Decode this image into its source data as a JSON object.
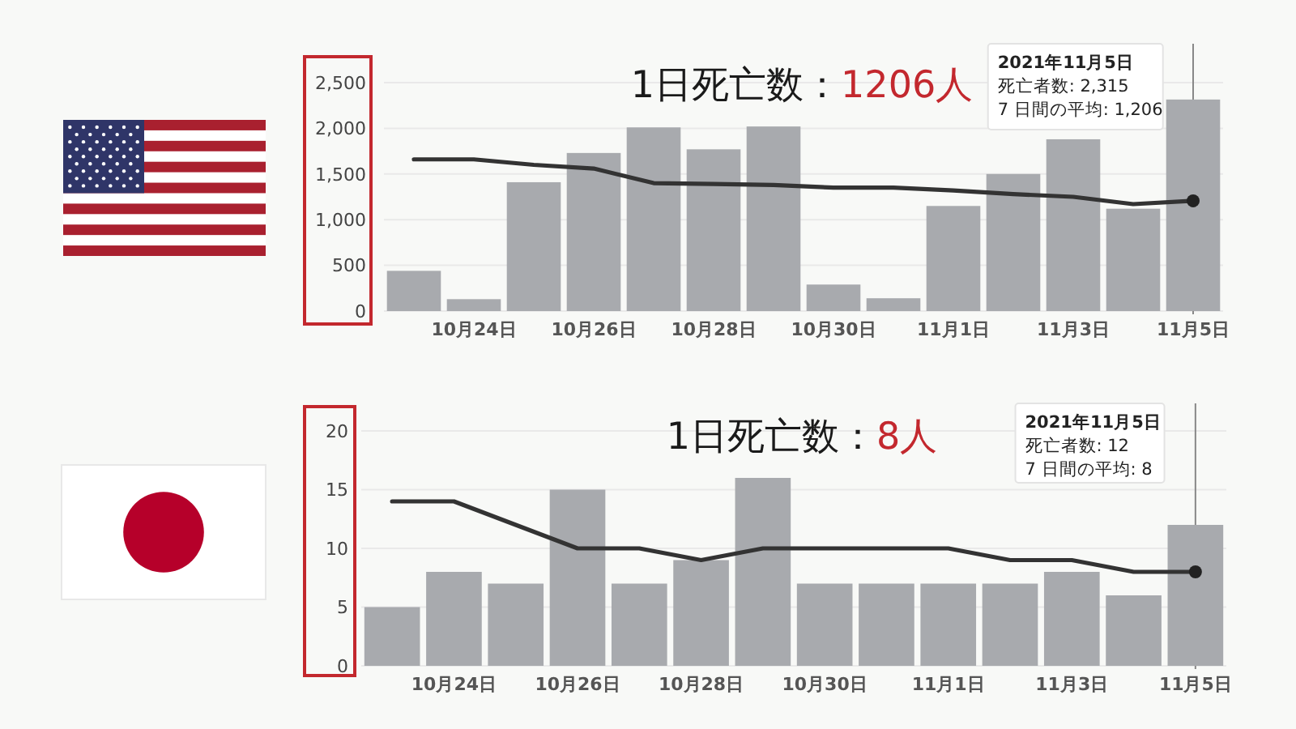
{
  "chart_data": [
    {
      "type": "bar",
      "title": "1日死亡数：1206人",
      "categories": [
        null,
        "10月24日",
        null,
        "10月26日",
        null,
        "10月28日",
        null,
        "10月30日",
        null,
        "11月1日",
        null,
        "11月3日",
        null,
        "11月5日"
      ],
      "series": [
        {
          "color": "#a8aaae",
          "values": [
            440,
            130,
            1410,
            1730,
            2010,
            1770,
            2020,
            290,
            140,
            1150,
            1500,
            1880,
            1120,
            2315
          ]
        },
        {
          "type": "line",
          "color": "#333333",
          "values": [
            1660,
            1660,
            1600,
            1560,
            1400,
            1390,
            1380,
            1350,
            1350,
            1320,
            1280,
            1250,
            1170,
            1206
          ]
        },
        {
          "type": "scatter",
          "color": "#222222",
          "x": [
            "11月5日"
          ],
          "values": [
            1206
          ]
        }
      ],
      "ylim": [
        0,
        2500
      ],
      "yticks": [
        0,
        500,
        {
          "value": 1000,
          "label": "1,000"
        },
        {
          "value": 1500,
          "label": "1,500"
        },
        {
          "value": 2000,
          "label": "2,000"
        },
        {
          "value": 2500,
          "label": "2,500"
        }
      ],
      "grid": "y",
      "ref_lines": [
        {
          "axis": "x",
          "value": "11月5日",
          "color": "#888888"
        }
      ],
      "annotations": [
        "2021年11月5日",
        "死亡者数: 2,315",
        "7 日間の平均: 1,206"
      ]
    },
    {
      "type": "bar",
      "title": "1日死亡数：8人",
      "categories": [
        null,
        "10月24日",
        null,
        "10月26日",
        null,
        "10月28日",
        null,
        "10月30日",
        null,
        "11月1日",
        null,
        "11月3日",
        null,
        "11月5日"
      ],
      "series": [
        {
          "color": "#a8aaae",
          "values": [
            5,
            8,
            7,
            15,
            7,
            9,
            16,
            7,
            7,
            7,
            7,
            8,
            6,
            12
          ]
        },
        {
          "type": "line",
          "color": "#333333",
          "values": [
            14,
            14,
            12,
            10,
            10,
            9,
            10,
            10,
            10,
            10,
            9,
            9,
            8,
            8
          ]
        },
        {
          "type": "scatter",
          "color": "#222222",
          "x": [
            "11月5日"
          ],
          "values": [
            8
          ]
        }
      ],
      "ylim": [
        0,
        20
      ],
      "yticks": [
        0,
        5,
        10,
        15,
        20
      ],
      "grid": "y",
      "ref_lines": [
        {
          "axis": "x",
          "value": "11月5日",
          "color": "#888888"
        }
      ],
      "annotations": [
        "2021年11月5日",
        "死亡者数: 12",
        "7 日間の平均: 8"
      ]
    }
  ]
}
